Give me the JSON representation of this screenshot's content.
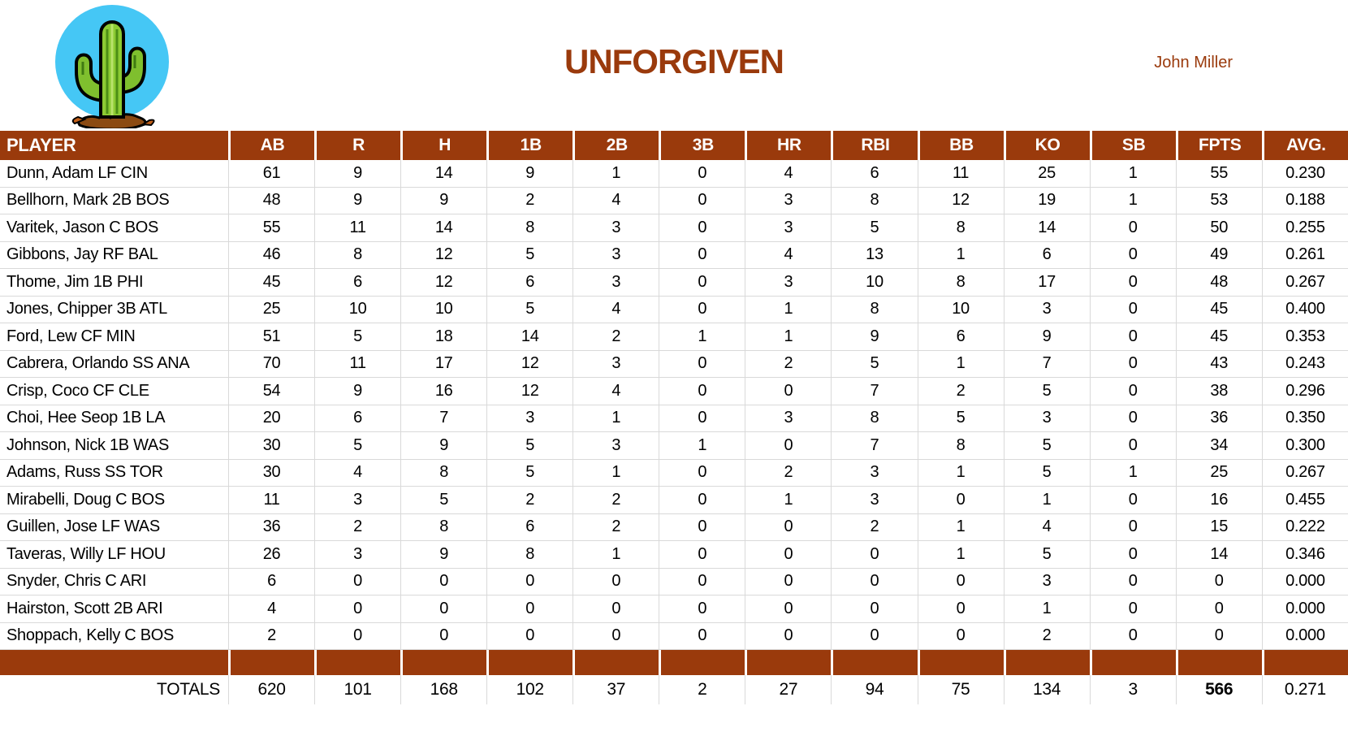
{
  "page": {
    "title": "UNFORGIVEN",
    "owner": "John Miller"
  },
  "colors": {
    "accent": "#9A3A0C",
    "grid": "#D9D9D9",
    "header_text": "#FFFFFF",
    "logo_circle": "#45C7F5"
  },
  "logo": {
    "icon": "cactus-icon"
  },
  "table": {
    "columns": [
      "PLAYER",
      "AB",
      "R",
      "H",
      "1B",
      "2B",
      "3B",
      "HR",
      "RBI",
      "BB",
      "KO",
      "SB",
      "FPTS",
      "AVG."
    ],
    "rows": [
      [
        "Dunn, Adam LF CIN",
        "61",
        "9",
        "14",
        "9",
        "1",
        "0",
        "4",
        "6",
        "11",
        "25",
        "1",
        "55",
        "0.230"
      ],
      [
        "Bellhorn, Mark 2B BOS",
        "48",
        "9",
        "9",
        "2",
        "4",
        "0",
        "3",
        "8",
        "12",
        "19",
        "1",
        "53",
        "0.188"
      ],
      [
        "Varitek, Jason C BOS",
        "55",
        "11",
        "14",
        "8",
        "3",
        "0",
        "3",
        "5",
        "8",
        "14",
        "0",
        "50",
        "0.255"
      ],
      [
        "Gibbons, Jay RF BAL",
        "46",
        "8",
        "12",
        "5",
        "3",
        "0",
        "4",
        "13",
        "1",
        "6",
        "0",
        "49",
        "0.261"
      ],
      [
        "Thome, Jim 1B PHI",
        "45",
        "6",
        "12",
        "6",
        "3",
        "0",
        "3",
        "10",
        "8",
        "17",
        "0",
        "48",
        "0.267"
      ],
      [
        "Jones, Chipper 3B ATL",
        "25",
        "10",
        "10",
        "5",
        "4",
        "0",
        "1",
        "8",
        "10",
        "3",
        "0",
        "45",
        "0.400"
      ],
      [
        "Ford, Lew CF MIN",
        "51",
        "5",
        "18",
        "14",
        "2",
        "1",
        "1",
        "9",
        "6",
        "9",
        "0",
        "45",
        "0.353"
      ],
      [
        "Cabrera, Orlando SS ANA",
        "70",
        "11",
        "17",
        "12",
        "3",
        "0",
        "2",
        "5",
        "1",
        "7",
        "0",
        "43",
        "0.243"
      ],
      [
        "Crisp, Coco CF CLE",
        "54",
        "9",
        "16",
        "12",
        "4",
        "0",
        "0",
        "7",
        "2",
        "5",
        "0",
        "38",
        "0.296"
      ],
      [
        "Choi, Hee Seop 1B LA",
        "20",
        "6",
        "7",
        "3",
        "1",
        "0",
        "3",
        "8",
        "5",
        "3",
        "0",
        "36",
        "0.350"
      ],
      [
        "Johnson, Nick 1B WAS",
        "30",
        "5",
        "9",
        "5",
        "3",
        "1",
        "0",
        "7",
        "8",
        "5",
        "0",
        "34",
        "0.300"
      ],
      [
        "Adams, Russ SS TOR",
        "30",
        "4",
        "8",
        "5",
        "1",
        "0",
        "2",
        "3",
        "1",
        "5",
        "1",
        "25",
        "0.267"
      ],
      [
        "Mirabelli, Doug C BOS",
        "11",
        "3",
        "5",
        "2",
        "2",
        "0",
        "1",
        "3",
        "0",
        "1",
        "0",
        "16",
        "0.455"
      ],
      [
        "Guillen, Jose LF WAS",
        "36",
        "2",
        "8",
        "6",
        "2",
        "0",
        "0",
        "2",
        "1",
        "4",
        "0",
        "15",
        "0.222"
      ],
      [
        "Taveras, Willy LF HOU",
        "26",
        "3",
        "9",
        "8",
        "1",
        "0",
        "0",
        "0",
        "1",
        "5",
        "0",
        "14",
        "0.346"
      ],
      [
        "Snyder, Chris C ARI",
        "6",
        "0",
        "0",
        "0",
        "0",
        "0",
        "0",
        "0",
        "0",
        "3",
        "0",
        "0",
        "0.000"
      ],
      [
        "Hairston, Scott 2B ARI",
        "4",
        "0",
        "0",
        "0",
        "0",
        "0",
        "0",
        "0",
        "0",
        "1",
        "0",
        "0",
        "0.000"
      ],
      [
        "Shoppach, Kelly C BOS",
        "2",
        "0",
        "0",
        "0",
        "0",
        "0",
        "0",
        "0",
        "0",
        "2",
        "0",
        "0",
        "0.000"
      ]
    ],
    "totals_label": "TOTALS",
    "totals": [
      "620",
      "101",
      "168",
      "102",
      "37",
      "2",
      "27",
      "94",
      "75",
      "134",
      "3",
      "566",
      "0.271"
    ],
    "totals_bold_index": 11
  }
}
